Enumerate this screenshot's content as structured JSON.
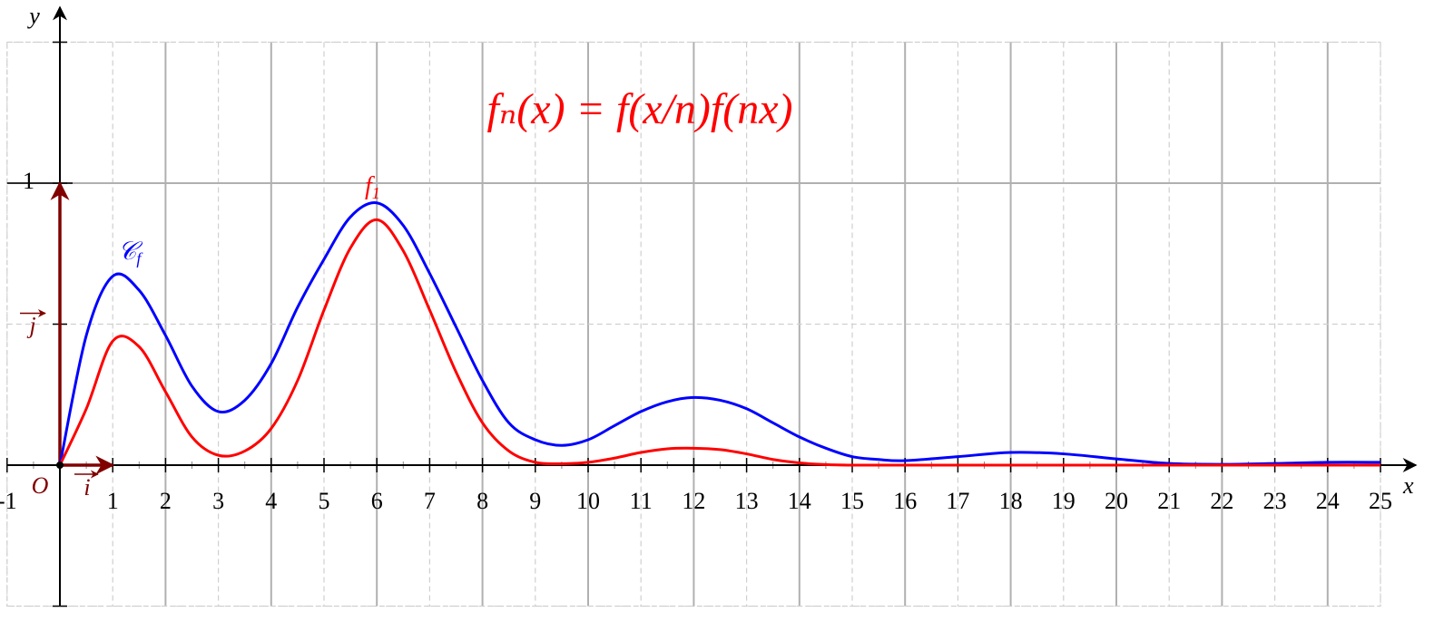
{
  "chart_data": {
    "type": "line",
    "formula": "fₙ(x) = f(x/n)f(nx)",
    "x_label": "x",
    "y_label": "y",
    "origin_label": "O",
    "i_label": "i",
    "j_label": "j",
    "xlim": [
      -1,
      25
    ],
    "ylim": [
      -0.5,
      1.5
    ],
    "xticks": [
      -1,
      1,
      2,
      3,
      4,
      5,
      6,
      7,
      8,
      9,
      10,
      11,
      12,
      13,
      14,
      15,
      16,
      17,
      18,
      19,
      20,
      21,
      22,
      23,
      24,
      25
    ],
    "yticks": [
      1
    ],
    "ygrid": [
      -0.5,
      0.5,
      1,
      1.5
    ],
    "grid": true,
    "x": [
      0,
      0.5,
      1,
      1.5,
      2,
      2.5,
      3,
      3.5,
      4,
      4.5,
      5,
      5.5,
      6,
      6.5,
      7,
      7.5,
      8,
      8.5,
      9,
      9.5,
      10,
      10.5,
      11,
      11.5,
      12,
      12.5,
      13,
      13.5,
      14,
      14.5,
      15,
      15.5,
      16,
      17,
      18,
      19,
      20,
      21,
      22,
      23,
      24,
      25
    ],
    "series": [
      {
        "name": "𝒞",
        "name_sub": "f",
        "color": "#0000ff",
        "values": [
          0,
          0.46,
          0.67,
          0.62,
          0.46,
          0.28,
          0.19,
          0.23,
          0.36,
          0.56,
          0.73,
          0.88,
          0.93,
          0.85,
          0.68,
          0.49,
          0.3,
          0.15,
          0.09,
          0.07,
          0.09,
          0.14,
          0.19,
          0.225,
          0.24,
          0.23,
          0.2,
          0.15,
          0.1,
          0.06,
          0.03,
          0.02,
          0.016,
          0.03,
          0.045,
          0.04,
          0.022,
          0.006,
          0.003,
          0.006,
          0.01,
          0.01
        ]
      },
      {
        "name": "f",
        "name_sub": "1",
        "color": "#ff0000",
        "values": [
          0,
          0.2,
          0.44,
          0.42,
          0.26,
          0.1,
          0.035,
          0.05,
          0.13,
          0.3,
          0.55,
          0.77,
          0.87,
          0.76,
          0.55,
          0.33,
          0.15,
          0.05,
          0.01,
          0.005,
          0.01,
          0.025,
          0.045,
          0.058,
          0.06,
          0.055,
          0.04,
          0.02,
          0.008,
          0.002,
          0,
          0,
          0,
          0,
          0,
          0,
          0,
          0,
          0,
          0,
          0,
          0
        ]
      }
    ]
  }
}
